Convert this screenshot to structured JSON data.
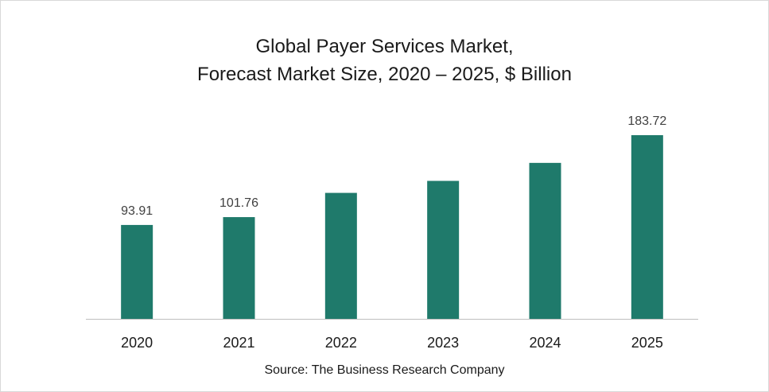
{
  "chart_data": {
    "type": "bar",
    "title_line1": "Global Payer Services Market,",
    "title_line2": "Forecast Market Size, 2020 – 2025, $ Billion",
    "categories": [
      "2020",
      "2021",
      "2022",
      "2023",
      "2024",
      "2025"
    ],
    "values": [
      93.91,
      101.76,
      126,
      138,
      156,
      183.72
    ],
    "data_labels": [
      "93.91",
      "101.76",
      "",
      "",
      "",
      "183.72"
    ],
    "bar_color": "#1f7a6b",
    "axis_color": "#bfbfbf",
    "grid": false,
    "legend": "none",
    "ylim": [
      0,
      200
    ]
  },
  "source": "Source: The Business Research Company"
}
